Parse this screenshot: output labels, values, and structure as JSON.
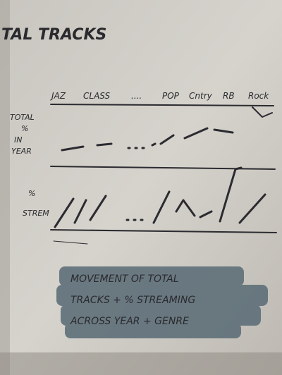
{
  "heading": "TAL TRACKS",
  "columns": [
    "JAZ",
    "CLASS",
    "....",
    "POP",
    "Cntry",
    "RB",
    "Rock"
  ],
  "rows": [
    {
      "label": [
        "TOTAL",
        "%",
        "IN",
        "YEAR"
      ]
    },
    {
      "label": [
        "%",
        "STREM"
      ]
    }
  ],
  "caption": [
    "MOVEMENT OF TOTAL",
    "TRACKS + % STREAMING",
    "ACROSS YEAR + GENRE"
  ]
}
